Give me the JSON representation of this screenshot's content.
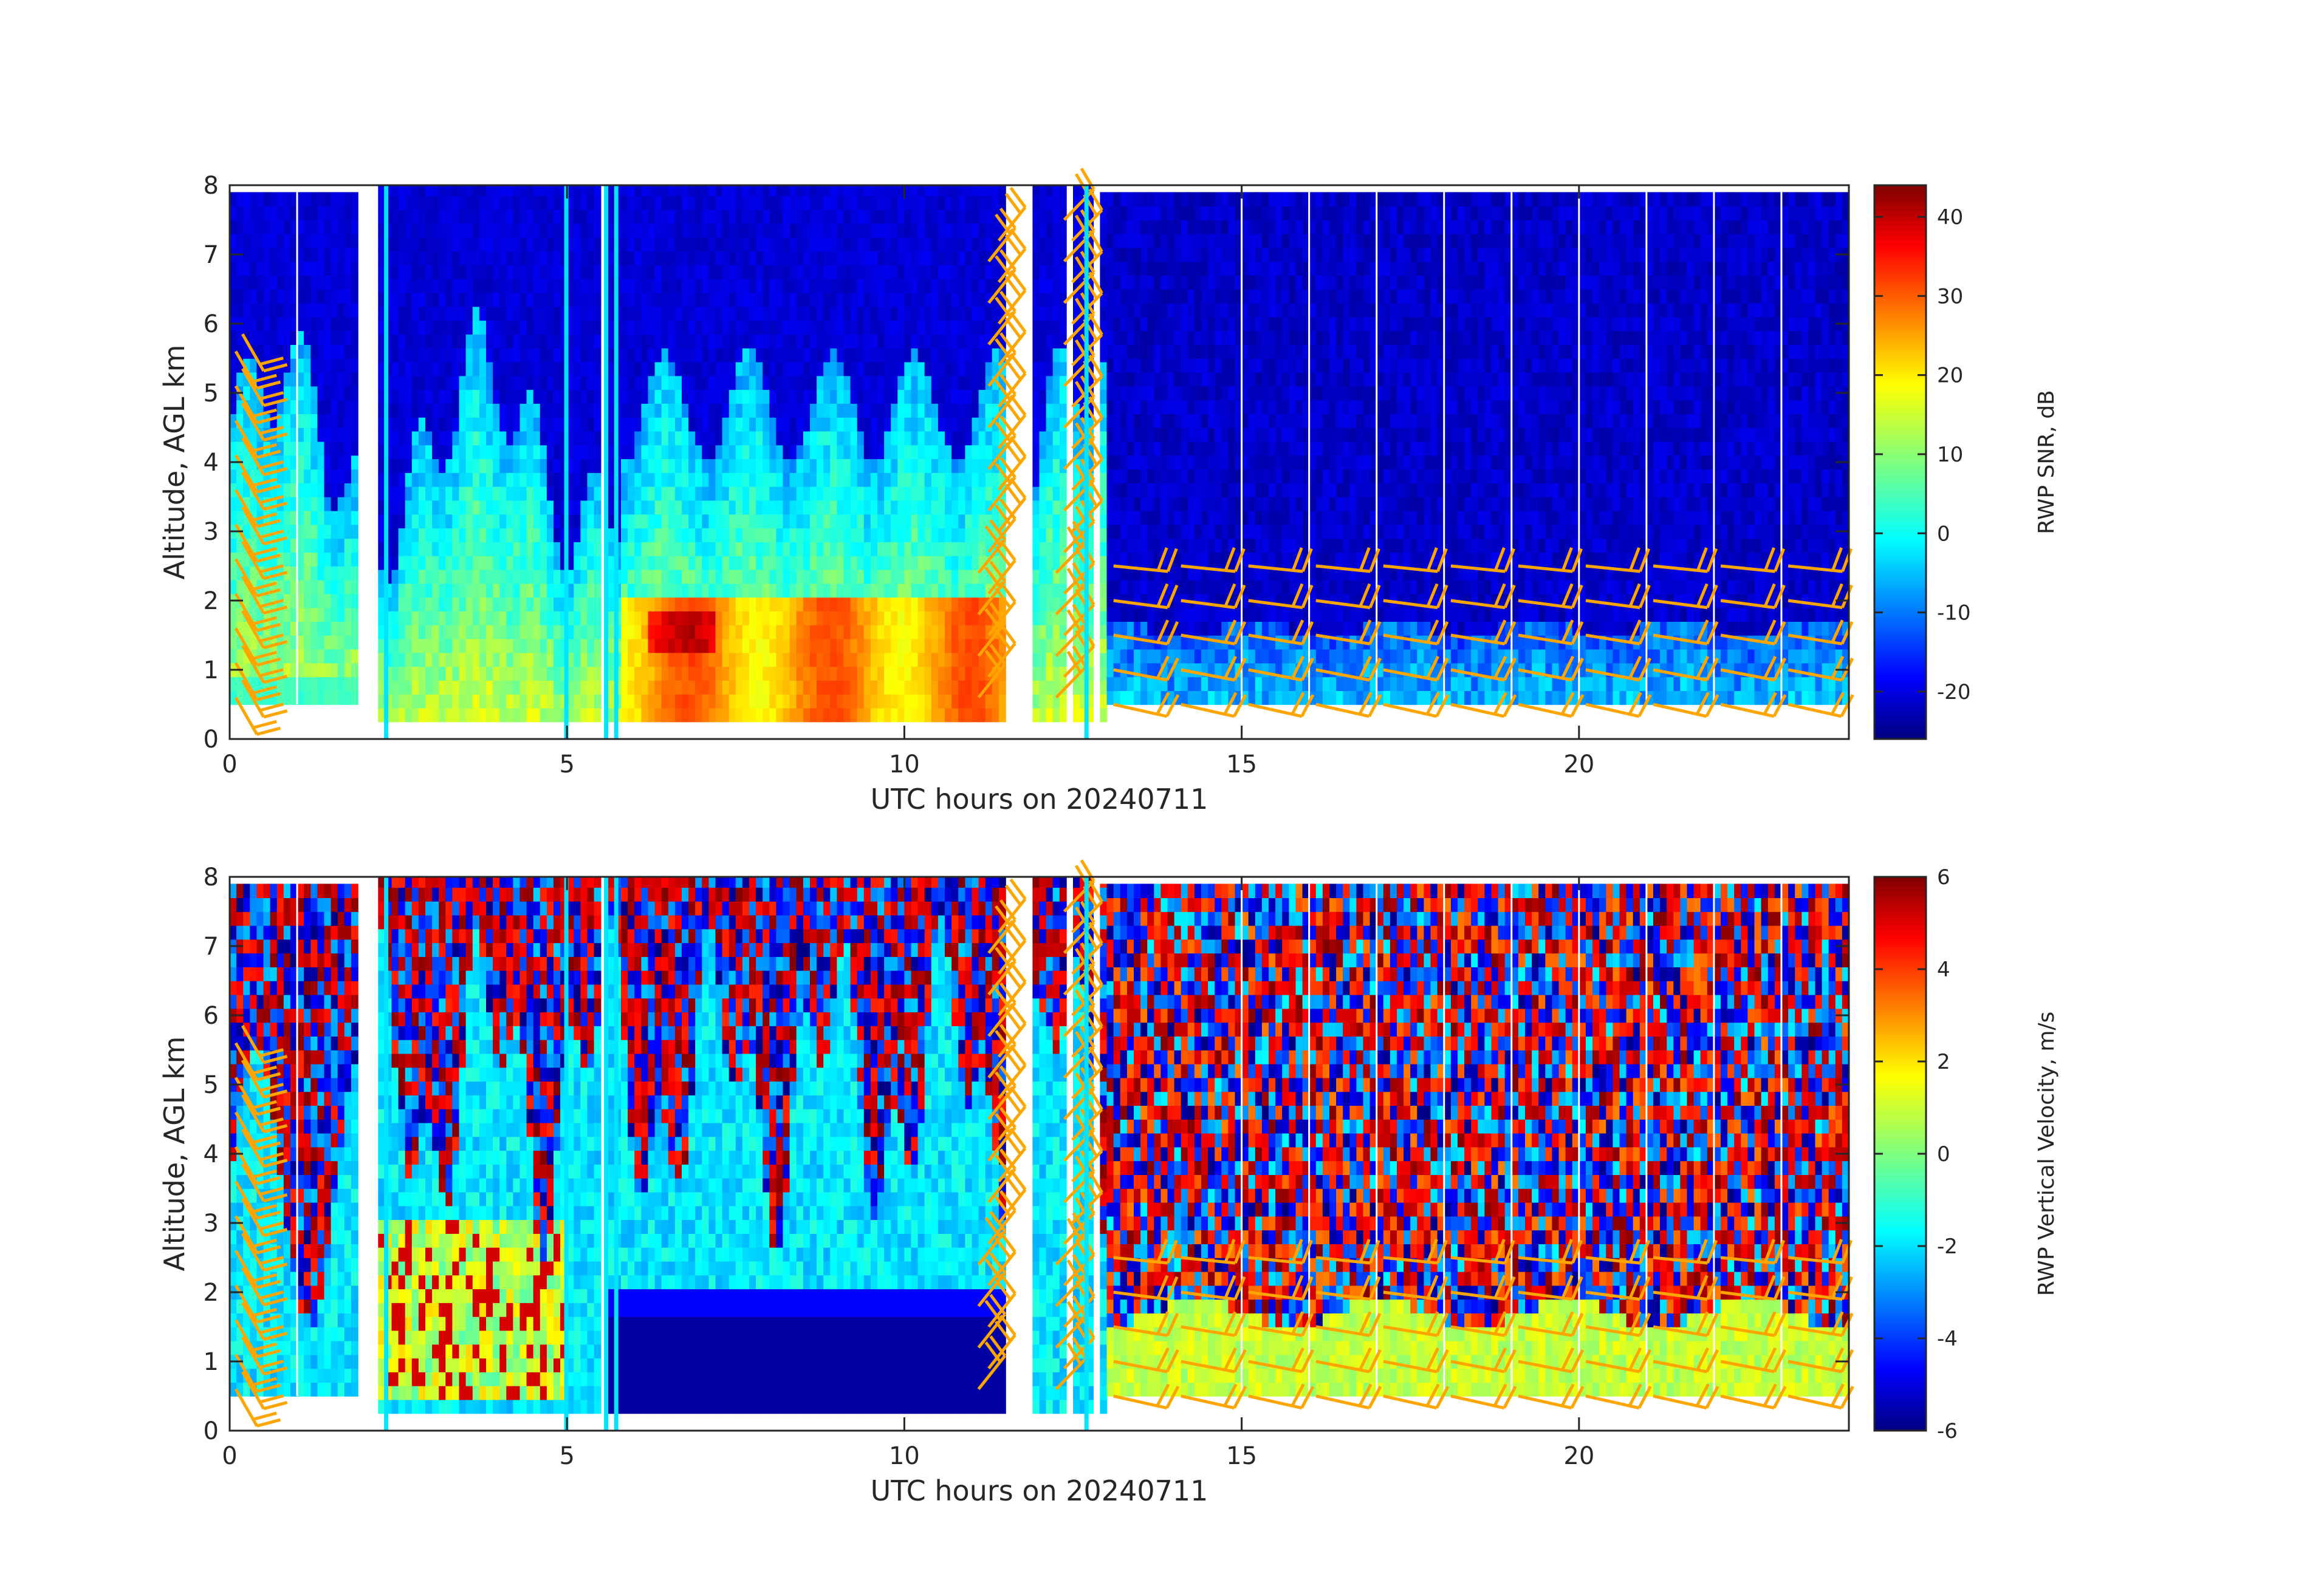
{
  "chart_data": [
    {
      "type": "heatmap",
      "xlabel": "UTC hours on 20240711",
      "ylabel": "Altitude, AGL km",
      "xlim": [
        0,
        24
      ],
      "ylim": [
        0,
        8
      ],
      "xticks": [
        0,
        5,
        10,
        15,
        20
      ],
      "yticks": [
        0,
        1,
        2,
        3,
        4,
        5,
        6,
        7,
        8
      ],
      "colorbar": {
        "label": "RWP SNR, dB",
        "range": [
          -26,
          44
        ],
        "ticks": [
          -20,
          -10,
          0,
          10,
          20,
          30,
          40
        ],
        "colormap": "jet"
      },
      "overlay": {
        "type": "wind barbs",
        "color": "#FFA500"
      }
    },
    {
      "type": "heatmap",
      "xlabel": "UTC hours on 20240711",
      "ylabel": "Altitude, AGL km",
      "xlim": [
        0,
        24
      ],
      "ylim": [
        0,
        8
      ],
      "xticks": [
        0,
        5,
        10,
        15,
        20
      ],
      "yticks": [
        0,
        1,
        2,
        3,
        4,
        5,
        6,
        7,
        8
      ],
      "colorbar": {
        "label": "RWP Vertical Velocity, m/s",
        "range": [
          -6,
          6
        ],
        "ticks": [
          -6,
          -4,
          -2,
          0,
          2,
          4,
          6
        ],
        "colormap": "jet"
      },
      "overlay": {
        "type": "wind barbs",
        "color": "#FFA500"
      }
    }
  ],
  "colors": {
    "barb": "#FFA500",
    "missing_line": "#00E5FF",
    "axis": "#262626"
  }
}
